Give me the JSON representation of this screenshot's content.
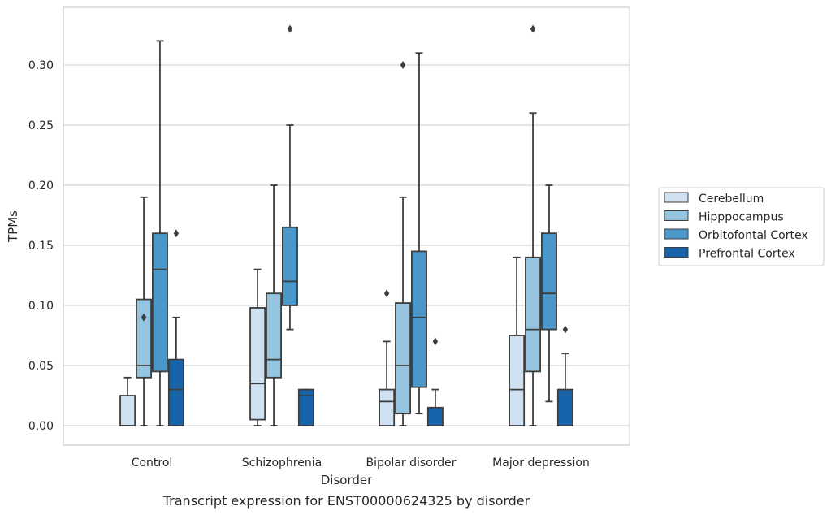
{
  "chart_data": {
    "type": "box",
    "xlabel": "Disorder",
    "ylabel": "TPMs",
    "caption": "Transcript expression for ENST00000624325 by disorder",
    "ylim": [
      -0.016,
      0.348
    ],
    "yticks": [
      0.0,
      0.05,
      0.1,
      0.15,
      0.2,
      0.25,
      0.3
    ],
    "ytick_labels": [
      "0.00",
      "0.05",
      "0.10",
      "0.15",
      "0.20",
      "0.25",
      "0.30"
    ],
    "grid": "horizontal",
    "legend_position": "right",
    "categories": [
      "Control",
      "Schizophrenia",
      "Bipolar disorder",
      "Major depression"
    ],
    "series": [
      {
        "name": "Cerebellum",
        "color": "#d0e1f2",
        "boxes": [
          {
            "whisker_low": 0.0,
            "q1": 0.0,
            "median": 0.0,
            "q3": 0.025,
            "whisker_high": 0.04,
            "outliers": []
          },
          {
            "whisker_low": 0.0,
            "q1": 0.005,
            "median": 0.035,
            "q3": 0.098,
            "whisker_high": 0.13,
            "outliers": []
          },
          {
            "whisker_low": 0.0,
            "q1": 0.0,
            "median": 0.02,
            "q3": 0.03,
            "whisker_high": 0.07,
            "outliers": [
              0.11
            ]
          },
          {
            "whisker_low": 0.0,
            "q1": 0.0,
            "median": 0.03,
            "q3": 0.075,
            "whisker_high": 0.14,
            "outliers": []
          }
        ]
      },
      {
        "name": "Hipppocampus",
        "color": "#94c4df",
        "boxes": [
          {
            "whisker_low": 0.0,
            "q1": 0.04,
            "median": 0.05,
            "q3": 0.105,
            "whisker_high": 0.19,
            "outliers": [
              0.09
            ]
          },
          {
            "whisker_low": 0.0,
            "q1": 0.04,
            "median": 0.055,
            "q3": 0.11,
            "whisker_high": 0.2,
            "outliers": []
          },
          {
            "whisker_low": 0.0,
            "q1": 0.01,
            "median": 0.05,
            "q3": 0.102,
            "whisker_high": 0.19,
            "outliers": [
              0.3
            ]
          },
          {
            "whisker_low": 0.0,
            "q1": 0.045,
            "median": 0.08,
            "q3": 0.14,
            "whisker_high": 0.26,
            "outliers": [
              0.33
            ]
          }
        ]
      },
      {
        "name": "Orbitofontal Cortex",
        "color": "#4a98c9",
        "boxes": [
          {
            "whisker_low": 0.0,
            "q1": 0.045,
            "median": 0.13,
            "q3": 0.16,
            "whisker_high": 0.32,
            "outliers": []
          },
          {
            "whisker_low": 0.08,
            "q1": 0.1,
            "median": 0.12,
            "q3": 0.165,
            "whisker_high": 0.25,
            "outliers": [
              0.33
            ]
          },
          {
            "whisker_low": 0.01,
            "q1": 0.032,
            "median": 0.09,
            "q3": 0.145,
            "whisker_high": 0.31,
            "outliers": []
          },
          {
            "whisker_low": 0.02,
            "q1": 0.08,
            "median": 0.11,
            "q3": 0.16,
            "whisker_high": 0.2,
            "outliers": []
          }
        ]
      },
      {
        "name": "Prefrontal Cortex",
        "color": "#1764ab",
        "boxes": [
          {
            "whisker_low": 0.0,
            "q1": 0.0,
            "median": 0.03,
            "q3": 0.055,
            "whisker_high": 0.09,
            "outliers": [
              0.16
            ]
          },
          {
            "whisker_low": 0.0,
            "q1": 0.0,
            "median": 0.025,
            "q3": 0.03,
            "whisker_high": 0.03,
            "outliers": []
          },
          {
            "whisker_low": 0.0,
            "q1": 0.0,
            "median": 0.0,
            "q3": 0.015,
            "whisker_high": 0.03,
            "outliers": [
              0.07
            ]
          },
          {
            "whisker_low": 0.0,
            "q1": 0.0,
            "median": 0.0,
            "q3": 0.03,
            "whisker_high": 0.06,
            "outliers": [
              0.08
            ]
          }
        ]
      }
    ]
  }
}
